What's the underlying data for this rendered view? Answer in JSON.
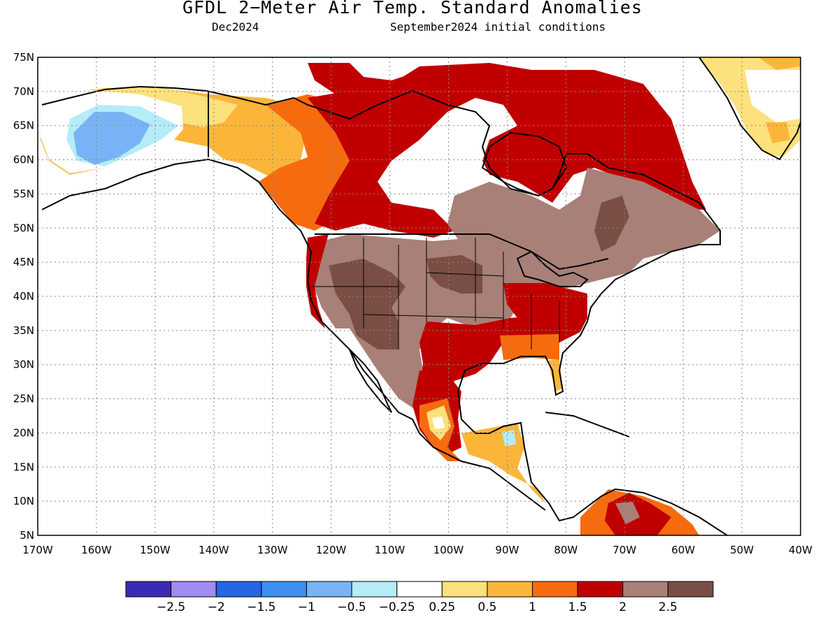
{
  "header": {
    "title": "GFDL 2−Meter Air Temp. Standard Anomalies",
    "valid_month": "Dec2024",
    "init": "September2024 initial conditions"
  },
  "axes": {
    "lat_labels": [
      "75N",
      "70N",
      "65N",
      "60N",
      "55N",
      "50N",
      "45N",
      "40N",
      "35N",
      "30N",
      "25N",
      "20N",
      "15N",
      "10N",
      "5N"
    ],
    "lon_labels": [
      "170W",
      "160W",
      "150W",
      "140W",
      "130W",
      "120W",
      "110W",
      "100W",
      "90W",
      "80W",
      "70W",
      "60W",
      "50W",
      "40W"
    ],
    "lat_range": [
      5,
      75
    ],
    "lon_range": [
      -170,
      -40
    ]
  },
  "colorbar": {
    "colors": [
      "#3b2ab5",
      "#a08cf2",
      "#2466e6",
      "#3c8ef0",
      "#78b4f5",
      "#b4ecf8",
      "#ffffff",
      "#fde17c",
      "#fbb63a",
      "#f76b0f",
      "#c00000",
      "#a88078",
      "#7a4e44"
    ],
    "labels": [
      "−2.5",
      "−2",
      "−1.5",
      "−1",
      "−0.5",
      "−0.25",
      "0.25",
      "0.5",
      "1",
      "1.5",
      "2",
      "2.5"
    ]
  }
}
